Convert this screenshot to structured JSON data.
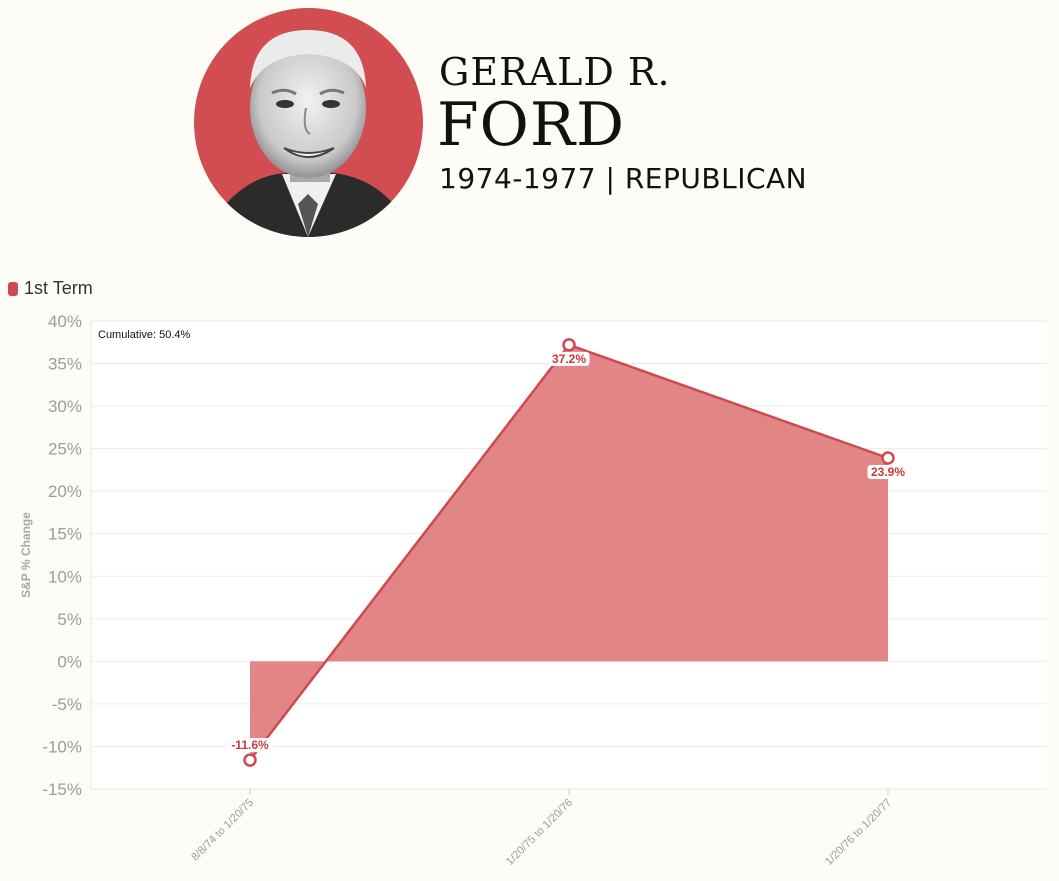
{
  "header": {
    "first_name": "GERALD R.",
    "last_name": "FORD",
    "term_line": "1974-1977  |  REPUBLICAN"
  },
  "legend": {
    "label": "1st Term",
    "color": "#cf4a4e"
  },
  "chart_data": {
    "type": "area",
    "categories": [
      "8/8/74 to 1/20/75",
      "1/20/75 to 1/20/76",
      "1/20/76 to 1/20/77"
    ],
    "series": [
      {
        "name": "1st Term",
        "values": [
          -11.6,
          37.2,
          23.9
        ],
        "labels": [
          "-11.6%",
          "37.2%",
          "23.9%"
        ]
      }
    ],
    "ylabel": "S&P % Change",
    "ylim": [
      -15,
      40
    ],
    "yticks": [
      40,
      35,
      30,
      25,
      20,
      15,
      10,
      5,
      0,
      -5,
      -10,
      -15
    ],
    "ytick_labels": [
      "40%",
      "35%",
      "30%",
      "25%",
      "20%",
      "15%",
      "10%",
      "5%",
      "0%",
      "-5%",
      "-10%",
      "-15%"
    ],
    "annotation": "Cumulative: 50.4%",
    "grid": true,
    "legend_position": "top-left",
    "colors": {
      "line": "#cf4a4e",
      "fill": "#de7b7d"
    }
  }
}
